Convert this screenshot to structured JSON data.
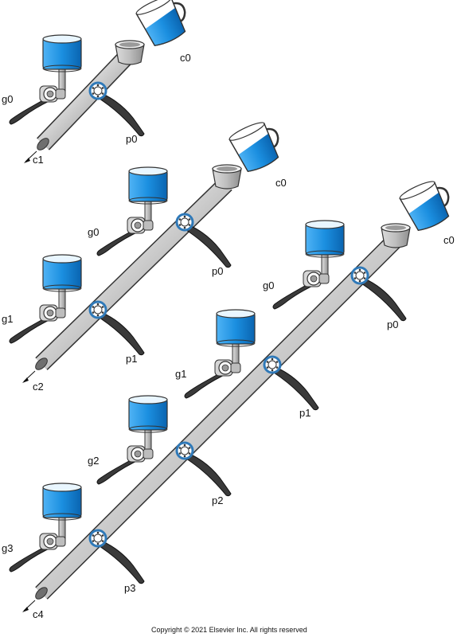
{
  "copyright": "Copyright © 2021 Elsevier Inc. All rights reserved",
  "panels": [
    {
      "id": "one-stage",
      "input": "c0",
      "output": "c1",
      "stages": [
        {
          "gate": "g0",
          "pipe": "p0"
        }
      ]
    },
    {
      "id": "two-stage",
      "input": "c0",
      "output": "c2",
      "stages": [
        {
          "gate": "g0",
          "pipe": "p0"
        },
        {
          "gate": "g1",
          "pipe": "p1"
        }
      ]
    },
    {
      "id": "four-stage",
      "input": "c0",
      "output": "c4",
      "stages": [
        {
          "gate": "g0",
          "pipe": "p0"
        },
        {
          "gate": "g1",
          "pipe": "p1"
        },
        {
          "gate": "g2",
          "pipe": "p2"
        },
        {
          "gate": "g3",
          "pipe": "p3"
        }
      ]
    }
  ],
  "colors": {
    "water": "#1b8fe0",
    "water_dark": "#0a64b0",
    "pipe_light": "#e8e8e8",
    "pipe_dark": "#8a8a8a",
    "wheel": "#2f79b8",
    "handle": "#3a3a3a"
  }
}
